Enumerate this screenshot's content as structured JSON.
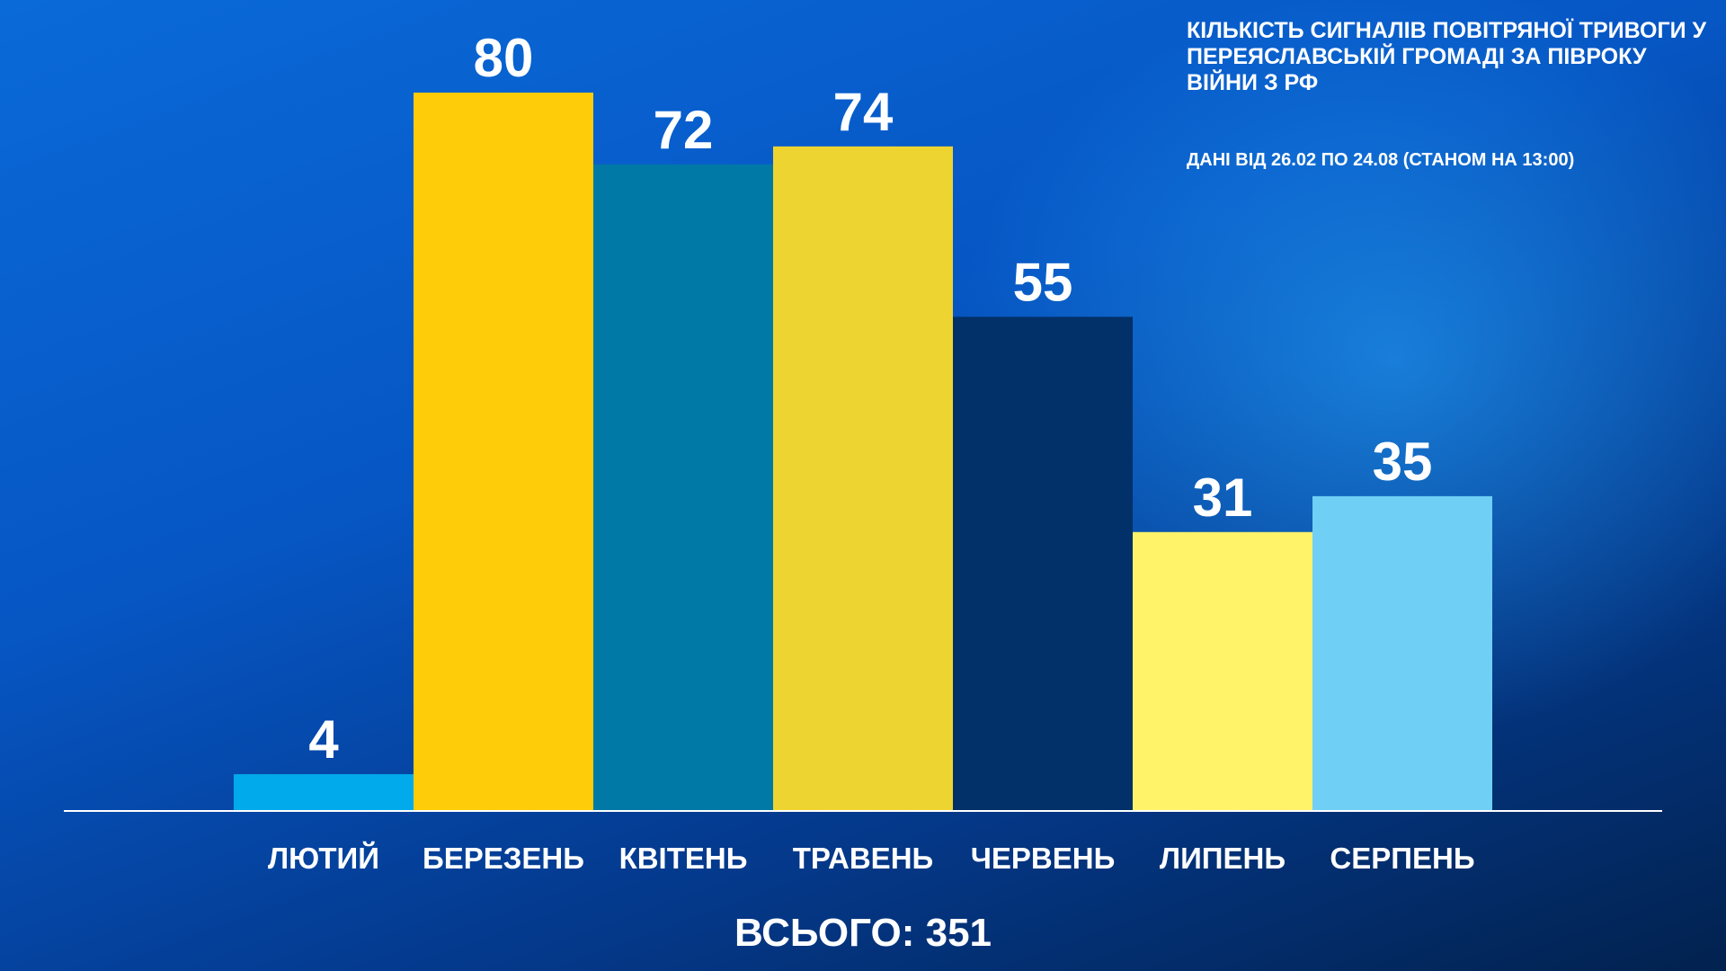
{
  "chart_data": {
    "type": "bar",
    "title": "КІЛЬКІСТЬ СИГНАЛІВ ПОВІТРЯНОЇ ТРИВОГИ У ПЕРЕЯСЛАВСЬКІЙ ГРОМАДІ ЗА ПІВРОКУ ВІЙНИ З РФ",
    "subtitle": "ДАНІ ВІД 26.02 ПО 24.08 (СТАНОМ НА 13:00)",
    "categories": [
      "ЛЮТИЙ",
      "БЕРЕЗЕНЬ",
      "КВІТЕНЬ",
      "ТРАВЕНЬ",
      "ЧЕРВЕНЬ",
      "ЛИПЕНЬ",
      "СЕРПЕНЬ"
    ],
    "values": [
      4,
      80,
      72,
      74,
      55,
      31,
      35
    ],
    "colors": [
      "#00aaeb",
      "#ffcc0a",
      "#0079a6",
      "#edd431",
      "#023068",
      "#fff369",
      "#6fcff5"
    ],
    "total": "ВСЬОГО: 351"
  }
}
